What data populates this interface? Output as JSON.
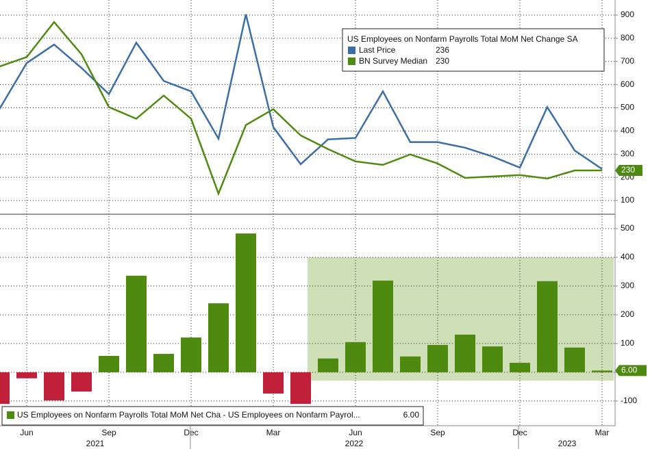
{
  "chart_data": [
    {
      "type": "line",
      "legend_title": "US Employees on Nonfarm Payrolls Total MoM Net Change SA",
      "categories": [
        null,
        "Jun",
        null,
        null,
        "Sep",
        null,
        null,
        "Dec",
        null,
        null,
        "Mar",
        null,
        null,
        "Jun",
        null,
        null,
        "Sep",
        null,
        null,
        "Dec",
        null,
        null,
        "Mar"
      ],
      "series": [
        {
          "name": "Last Price",
          "color": "#3a6ea5",
          "values": [
            494,
            693,
            773,
            672,
            559,
            781,
            616,
            571,
            367,
            903,
            417,
            257,
            364,
            370,
            571,
            352,
            352,
            328,
            290,
            242,
            503,
            316,
            236
          ]
        },
        {
          "name": "BN Survey Median",
          "color": "#4f8a10",
          "values": [
            678,
            719,
            870,
            731,
            503,
            453,
            553,
            453,
            130,
            426,
            494,
            381,
            322,
            269,
            254,
            299,
            260,
            198,
            204,
            210,
            195,
            230,
            230
          ]
        }
      ],
      "ylim": [
        50,
        965
      ],
      "yticks": [
        100,
        200,
        300,
        400,
        500,
        600,
        700,
        800,
        900
      ],
      "grid": true
    },
    {
      "type": "bar",
      "name": "US Employees on Nonfarm Payrolls Total MoM Net Cha - US Employees on Nonfarm Payrol...",
      "x_group_labels": [
        "2021",
        "2022",
        "2023"
      ],
      "positive_color": "#4f8a10",
      "negative_color": "#c0203a",
      "values": [
        -110,
        -21,
        -98,
        -67,
        57,
        336,
        64,
        121,
        240,
        483,
        -74,
        -110,
        48,
        105,
        319,
        55,
        95,
        131,
        90,
        33,
        317,
        86,
        6
      ],
      "value_labels": [
        null,
        null,
        null,
        null,
        null,
        null,
        null,
        null,
        null,
        null,
        null,
        null,
        null,
        null,
        null,
        null,
        null,
        null,
        null,
        null,
        null,
        null,
        "6.00"
      ],
      "ylim": [
        -186,
        538
      ],
      "yticks": [
        -100,
        0,
        100,
        200,
        300,
        400,
        500
      ],
      "grid": true
    }
  ]
}
